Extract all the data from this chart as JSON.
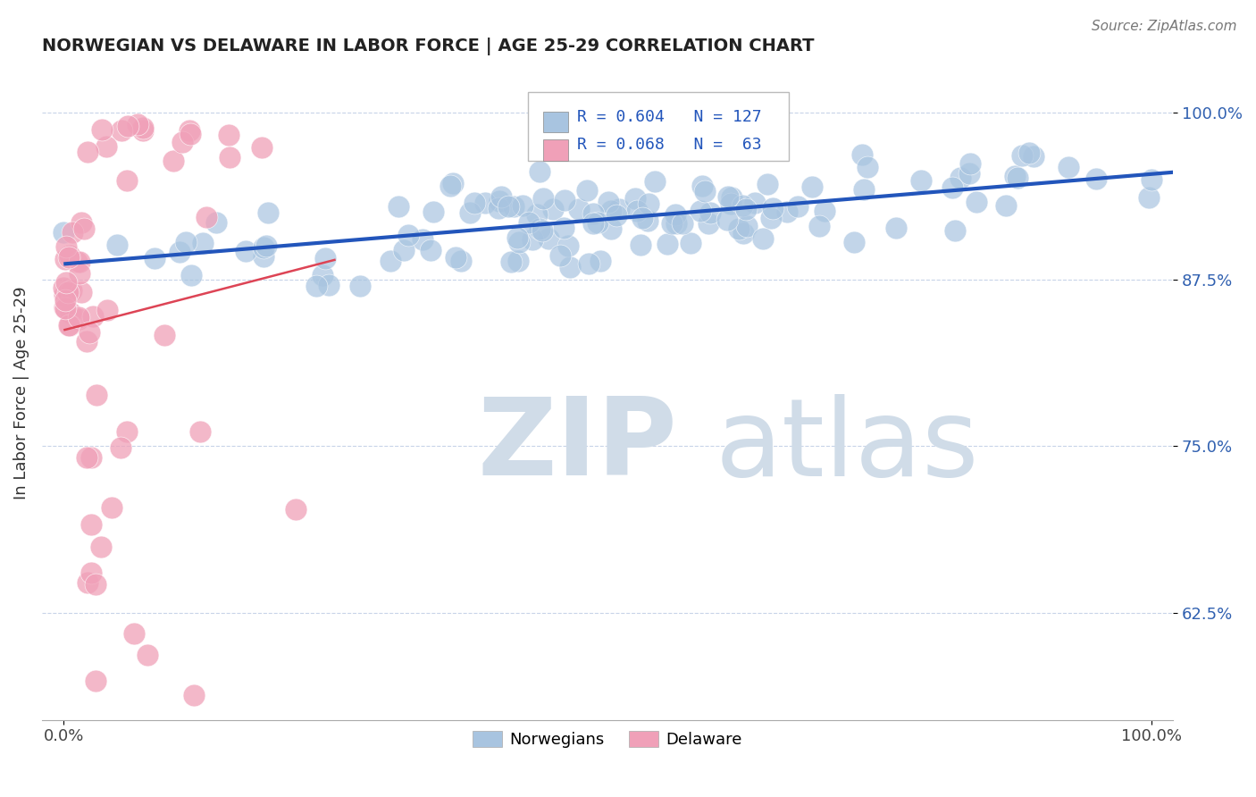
{
  "title": "NORWEGIAN VS DELAWARE IN LABOR FORCE | AGE 25-29 CORRELATION CHART",
  "source_text": "Source: ZipAtlas.com",
  "ylabel": "In Labor Force | Age 25-29",
  "xlim": [
    -0.02,
    1.02
  ],
  "ylim": [
    0.545,
    1.035
  ],
  "yticks": [
    0.625,
    0.75,
    0.875,
    1.0
  ],
  "ytick_labels": [
    "62.5%",
    "75.0%",
    "87.5%",
    "100.0%"
  ],
  "xtick_labels": [
    "0.0%",
    "100.0%"
  ],
  "legend_r_norwegian": "R = 0.604",
  "legend_n_norwegian": "N = 127",
  "legend_r_delaware": "R = 0.068",
  "legend_n_delaware": "N =  63",
  "norwegian_color": "#a8c4e0",
  "delaware_color": "#f0a0b8",
  "trend_norwegian_color": "#2255bb",
  "trend_delaware_color": "#dd4455",
  "trend_nor_dashed_color": "#c0c8e8",
  "grid_color": "#c8d4e8",
  "watermark_color": "#d0dce8",
  "background_color": "#ffffff",
  "figsize": [
    14.06,
    8.92
  ],
  "dpi": 100
}
